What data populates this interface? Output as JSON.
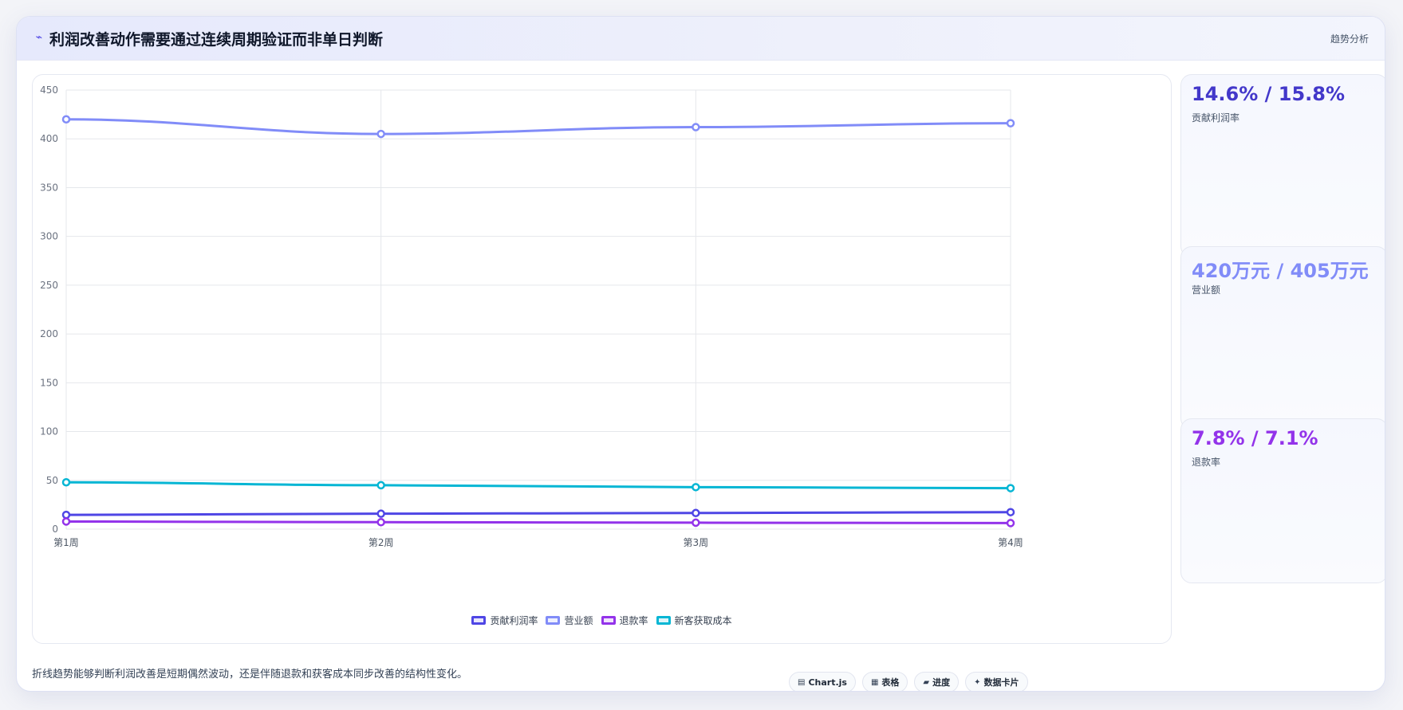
{
  "header": {
    "icon": "trend-line-icon",
    "title": "利润改善动作需要通过连续周期验证而非单日判断",
    "link_label": "趋势分析"
  },
  "chart_data": {
    "type": "line",
    "title": "",
    "xlabel": "",
    "ylabel": "",
    "categories": [
      "第1周",
      "第2周",
      "第3周",
      "第4周"
    ],
    "ylim": [
      0,
      450
    ],
    "yticks": [
      0,
      50,
      100,
      150,
      200,
      250,
      300,
      350,
      400,
      450
    ],
    "grid": true,
    "legend_position": "bottom",
    "series": [
      {
        "name": "贡献利润率",
        "color": "#4f46e5",
        "values": [
          14.6,
          15.8,
          16.5,
          17.4
        ]
      },
      {
        "name": "营业额",
        "color": "#818cf8",
        "values": [
          420,
          405,
          412,
          416
        ]
      },
      {
        "name": "退款率",
        "color": "#9333ea",
        "values": [
          7.8,
          7.1,
          6.6,
          6.2
        ]
      },
      {
        "name": "新客获取成本",
        "color": "#06b6d4",
        "values": [
          48,
          45,
          43,
          42
        ]
      }
    ]
  },
  "stats": [
    {
      "value": "14.6% / 15.8%",
      "label": "贡献利润率",
      "color": "#4338ca"
    },
    {
      "value": "420万元 / 405万元",
      "label": "营业额",
      "color": "#818cf8"
    },
    {
      "value": "7.8% / 7.1%",
      "label": "退款率",
      "color": "#9333ea"
    }
  ],
  "footer": {
    "note": "折线趋势能够判断利润改善是短期偶然波动，还是伴随退款和获客成本同步改善的结构性变化。",
    "tags": [
      {
        "icon": "chart-icon",
        "glyph": "▤",
        "label": "Chart.js"
      },
      {
        "icon": "table-icon",
        "glyph": "▦",
        "label": "表格"
      },
      {
        "icon": "progress-icon",
        "glyph": "▰",
        "label": "进度"
      },
      {
        "icon": "sparkle-icon",
        "glyph": "✦",
        "label": "数据卡片"
      }
    ]
  }
}
